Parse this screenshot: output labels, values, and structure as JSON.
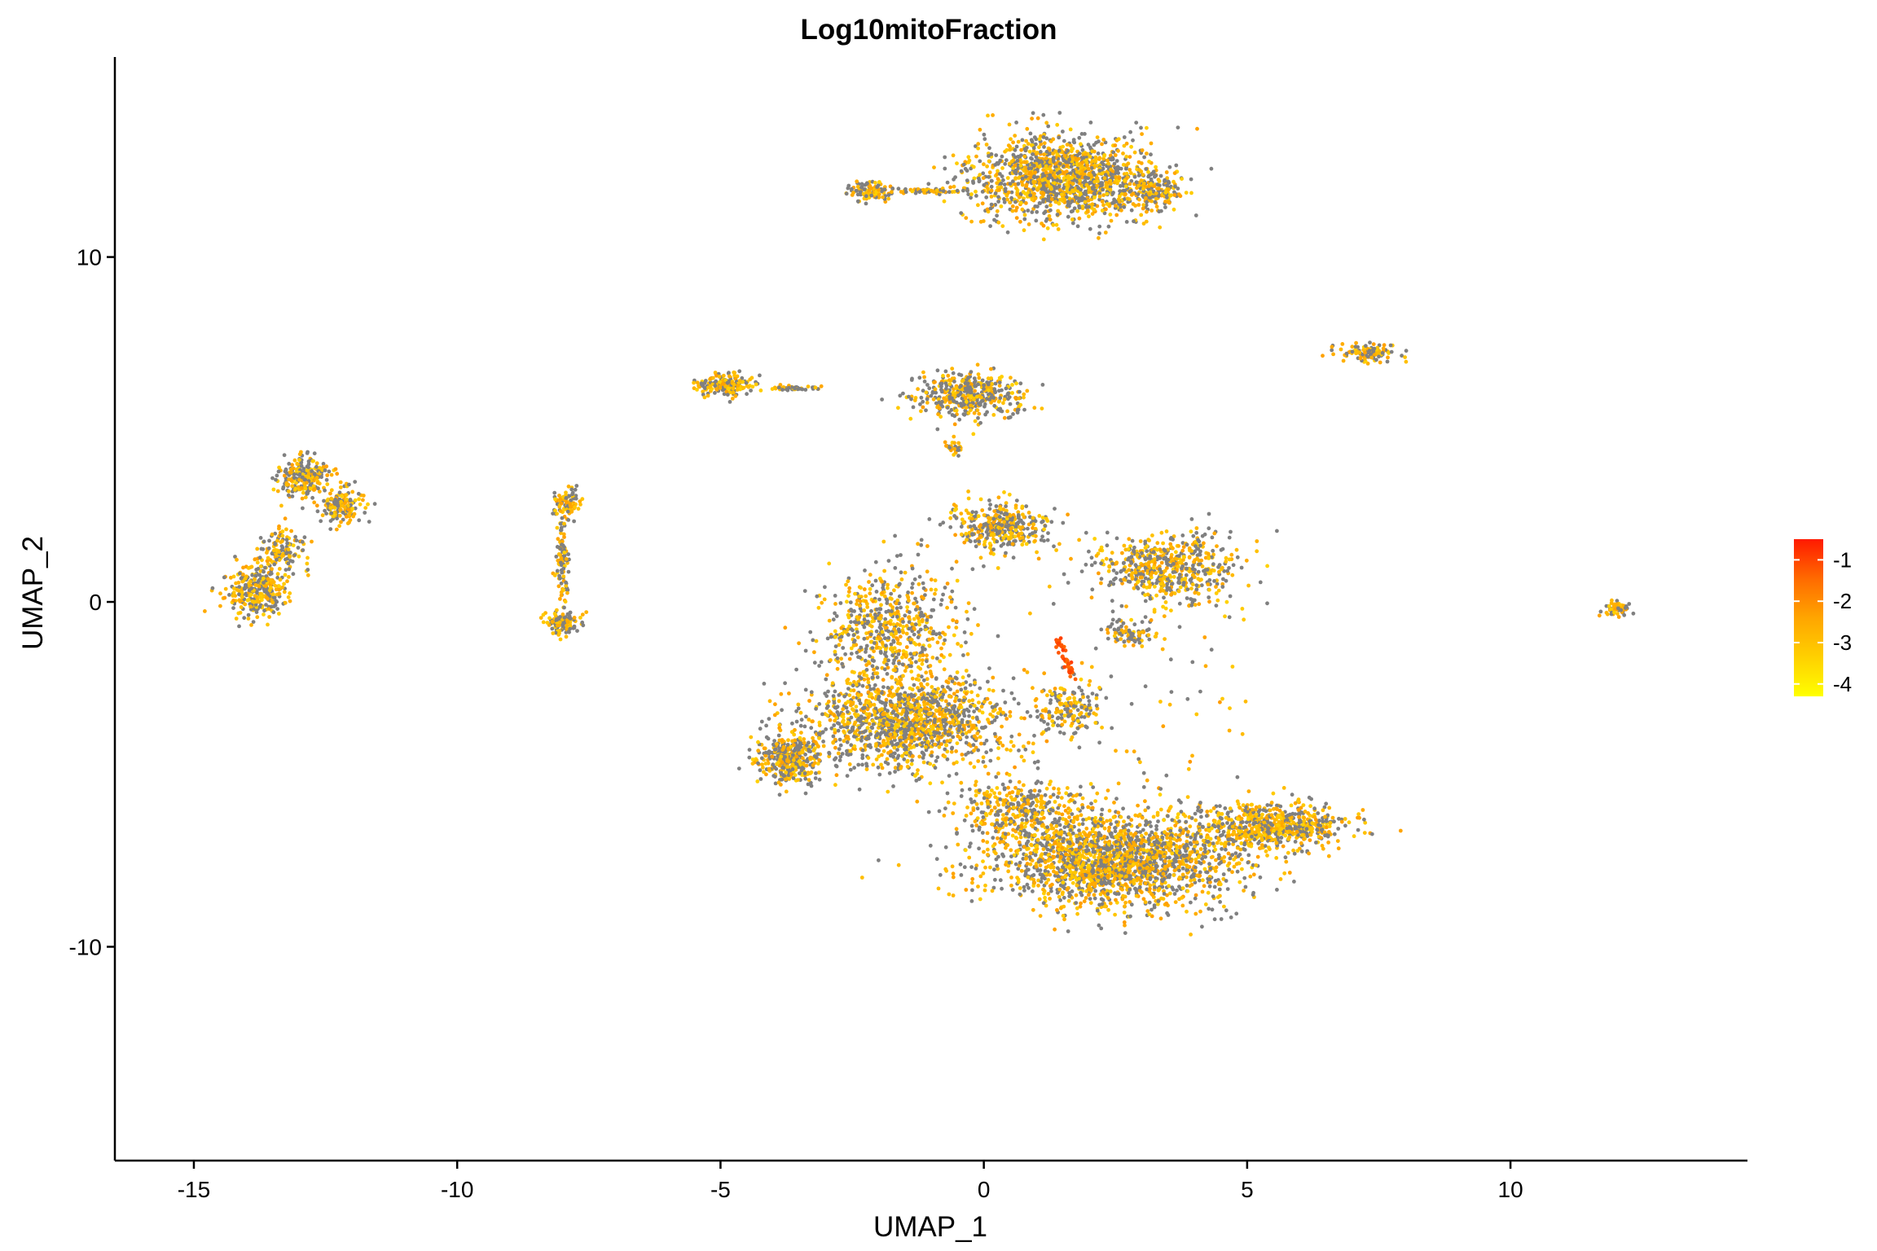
{
  "chart_data": {
    "type": "scatter",
    "title": "Log10mitoFraction",
    "xlabel": "UMAP_1",
    "ylabel": "UMAP_2",
    "xlim": [
      -16.5,
      14.5
    ],
    "ylim": [
      -16.2,
      15.8
    ],
    "x_ticks": [
      -15,
      -10,
      -5,
      0,
      5,
      10
    ],
    "y_ticks": [
      -10,
      0,
      10
    ],
    "x_tick_labels": [
      "-15",
      "-10",
      "-5",
      "0",
      "5",
      "10"
    ],
    "y_tick_labels": [
      "-10",
      "0",
      "10"
    ],
    "grid": false,
    "legend_placement": "right",
    "colorbar": {
      "ticks": [
        -1,
        -2,
        -3,
        -4
      ],
      "tick_labels": [
        "-1",
        "-2",
        "-3",
        "-4"
      ],
      "range": [
        -4.3,
        -0.5
      ],
      "colors": [
        "#FFFF00",
        "#FFD000",
        "#FFA500",
        "#FF6A00",
        "#FF1A00"
      ]
    },
    "na_color": "#808080",
    "clusters": [
      {
        "cx": 1.5,
        "cy": 12.3,
        "rx": 1.6,
        "ry": 1.1,
        "n": 1400
      },
      {
        "cx": 3.2,
        "cy": 11.9,
        "rx": 0.5,
        "ry": 0.5,
        "n": 150
      },
      {
        "cx": -2.1,
        "cy": 11.9,
        "rx": 0.4,
        "ry": 0.25,
        "n": 120
      },
      {
        "cx": -0.9,
        "cy": 11.9,
        "rx": 0.7,
        "ry": 0.08,
        "n": 60
      },
      {
        "cx": -4.9,
        "cy": 6.3,
        "rx": 0.45,
        "ry": 0.3,
        "n": 180
      },
      {
        "cx": -3.6,
        "cy": 6.2,
        "rx": 0.5,
        "ry": 0.08,
        "n": 50
      },
      {
        "cx": -0.3,
        "cy": 6.0,
        "rx": 0.9,
        "ry": 0.6,
        "n": 420
      },
      {
        "cx": -0.55,
        "cy": 4.5,
        "rx": 0.12,
        "ry": 0.2,
        "n": 30
      },
      {
        "cx": 7.3,
        "cy": 7.25,
        "rx": 0.5,
        "ry": 0.25,
        "n": 110
      },
      {
        "cx": 12.0,
        "cy": -0.2,
        "rx": 0.25,
        "ry": 0.2,
        "n": 60
      },
      {
        "cx": -13.8,
        "cy": 0.3,
        "rx": 0.5,
        "ry": 0.7,
        "n": 320
      },
      {
        "cx": -13.3,
        "cy": 1.5,
        "rx": 0.4,
        "ry": 0.6,
        "n": 120
      },
      {
        "cx": -12.9,
        "cy": 3.6,
        "rx": 0.45,
        "ry": 0.5,
        "n": 220
      },
      {
        "cx": -12.2,
        "cy": 2.8,
        "rx": 0.35,
        "ry": 0.45,
        "n": 160
      },
      {
        "cx": -7.9,
        "cy": 2.9,
        "rx": 0.25,
        "ry": 0.35,
        "n": 100
      },
      {
        "cx": -8.0,
        "cy": 1.2,
        "rx": 0.12,
        "ry": 1.3,
        "n": 110
      },
      {
        "cx": -8.0,
        "cy": -0.6,
        "rx": 0.3,
        "ry": 0.3,
        "n": 110
      },
      {
        "cx": 0.3,
        "cy": 2.2,
        "rx": 0.8,
        "ry": 0.6,
        "n": 380
      },
      {
        "cx": 3.5,
        "cy": 1.0,
        "rx": 1.3,
        "ry": 0.9,
        "n": 560
      },
      {
        "cx": 2.8,
        "cy": -0.9,
        "rx": 0.4,
        "ry": 0.3,
        "n": 90
      },
      {
        "cx": -1.8,
        "cy": -0.8,
        "rx": 1.1,
        "ry": 1.5,
        "n": 600
      },
      {
        "cx": -1.5,
        "cy": -3.5,
        "rx": 1.8,
        "ry": 1.2,
        "n": 1300
      },
      {
        "cx": -3.7,
        "cy": -4.6,
        "rx": 0.55,
        "ry": 0.65,
        "n": 380
      },
      {
        "cx": 2.5,
        "cy": -7.5,
        "rx": 2.2,
        "ry": 1.25,
        "n": 2000
      },
      {
        "cx": 5.5,
        "cy": -6.5,
        "rx": 1.3,
        "ry": 0.6,
        "n": 650
      },
      {
        "cx": 0.8,
        "cy": -6.0,
        "rx": 1.2,
        "ry": 0.8,
        "n": 350
      },
      {
        "cx": 1.6,
        "cy": -3.1,
        "rx": 0.55,
        "ry": 0.7,
        "n": 160
      }
    ],
    "high_mito_streak": {
      "from": [
        1.4,
        -1.1
      ],
      "to": [
        1.7,
        -2.2
      ],
      "n": 50,
      "value": -1.2
    }
  }
}
